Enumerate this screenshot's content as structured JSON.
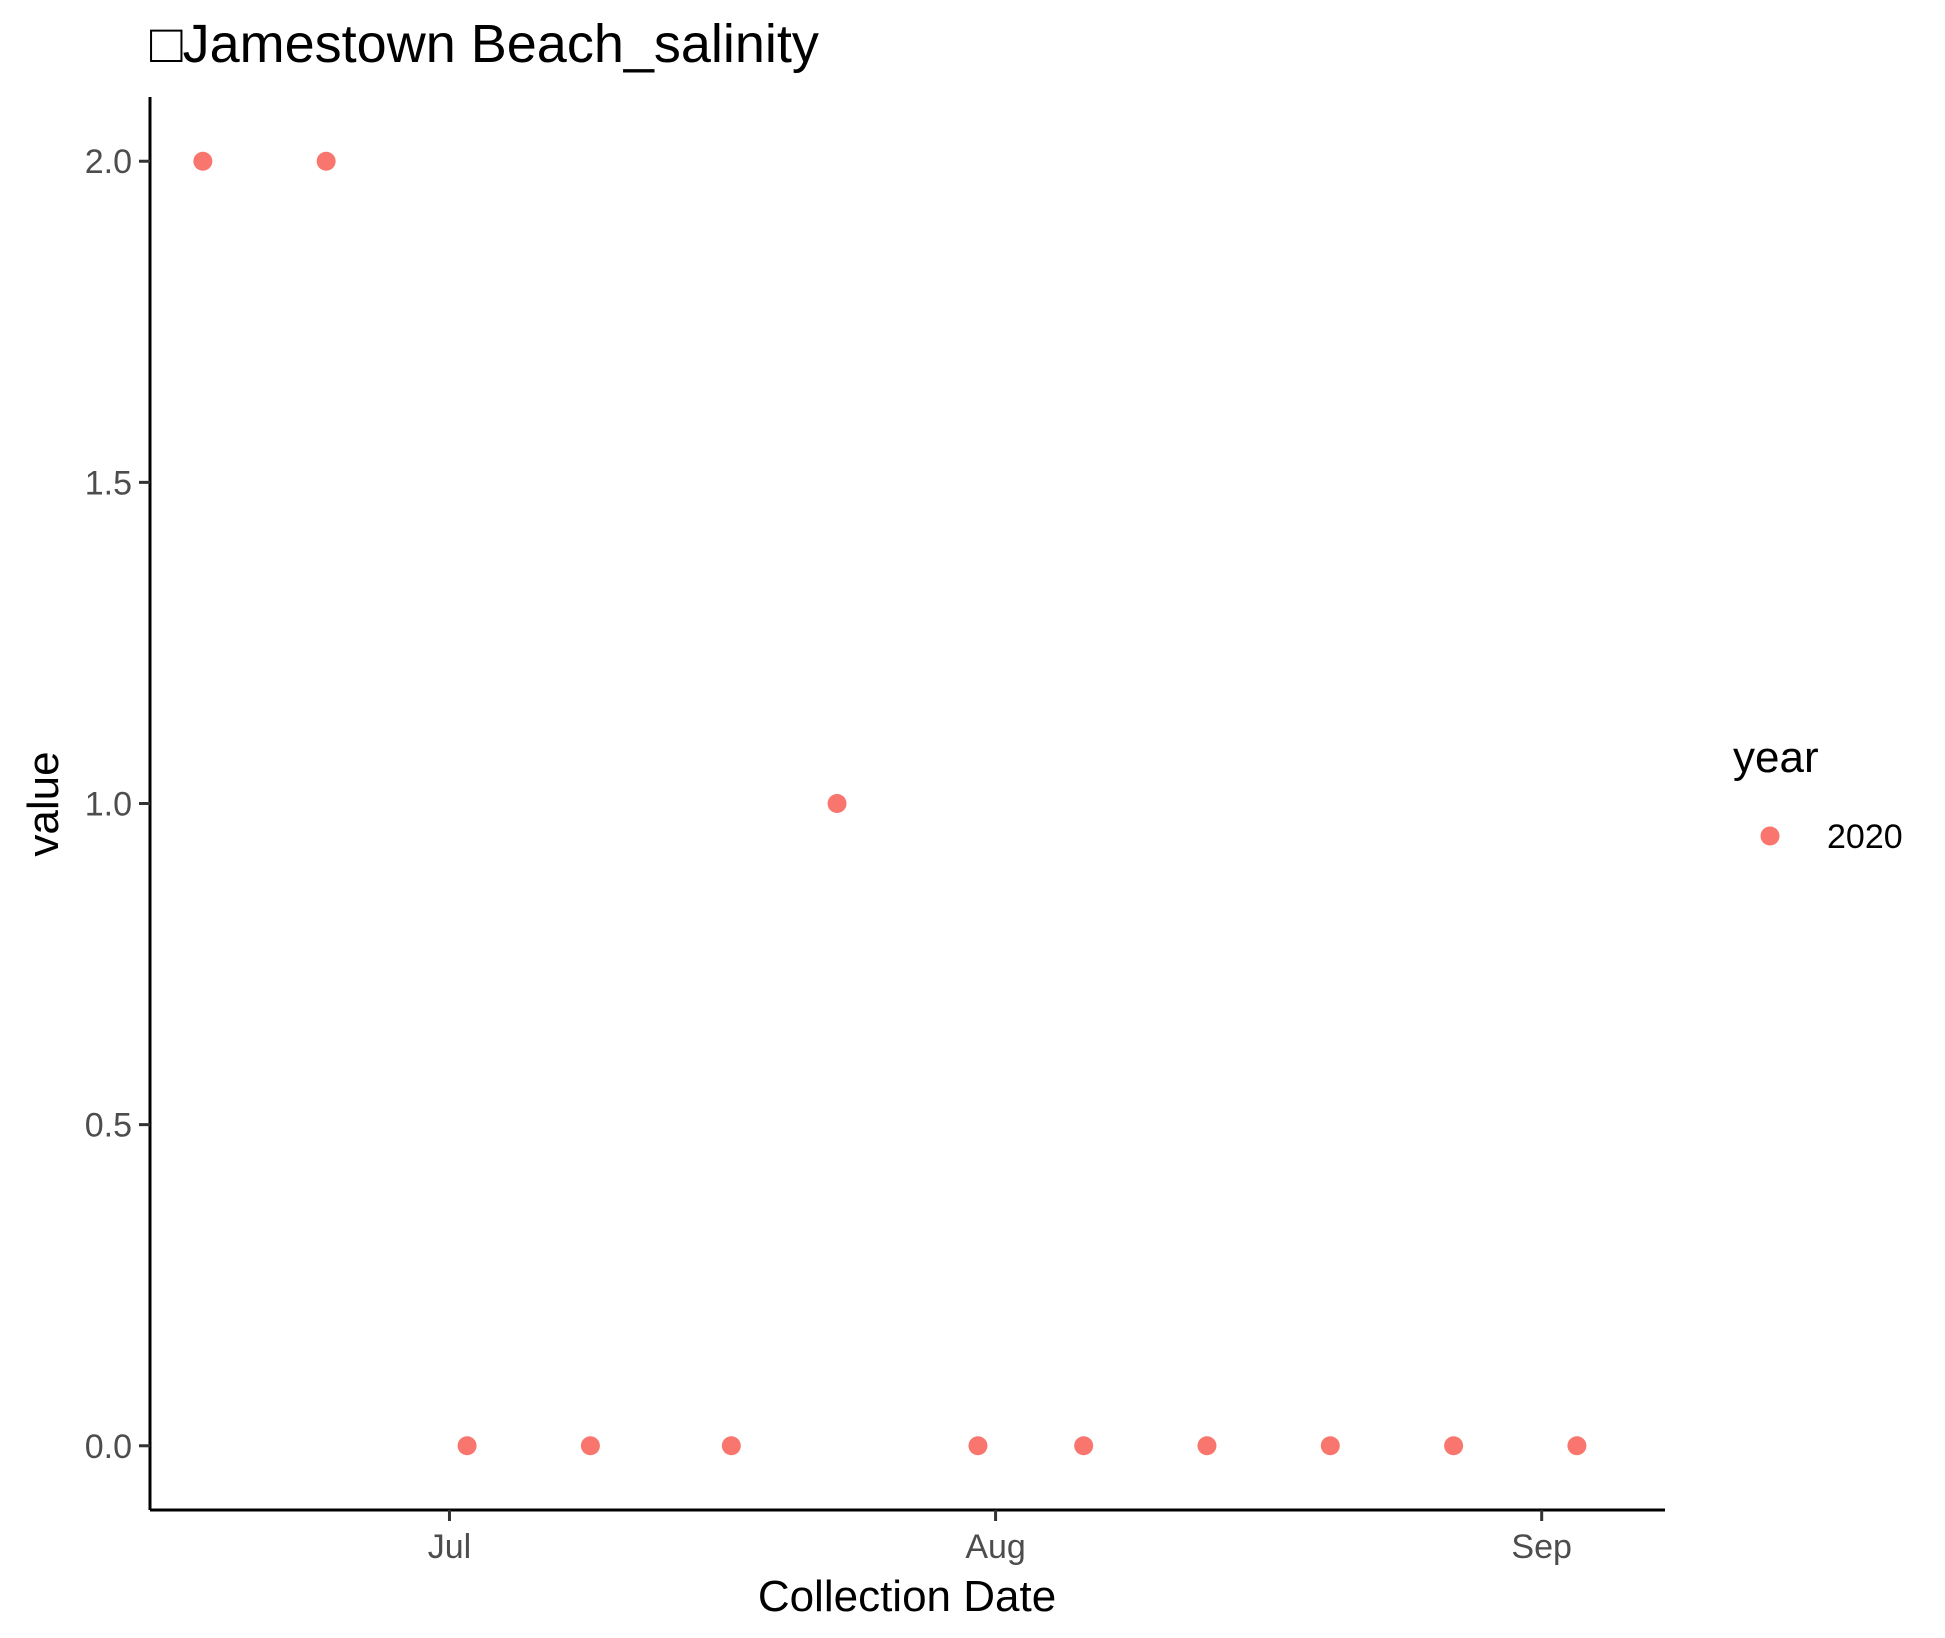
{
  "chart_data": {
    "type": "scatter",
    "title": "□Jamestown Beach_salinity",
    "xlabel": "Collection Date",
    "ylabel": "value",
    "x_type": "date",
    "x_range": [
      "2020-06-14",
      "2020-09-08"
    ],
    "x_ticks": [
      {
        "date": "2020-07-01",
        "label": "Jul"
      },
      {
        "date": "2020-08-01",
        "label": "Aug"
      },
      {
        "date": "2020-09-01",
        "label": "Sep"
      }
    ],
    "ylim": [
      -0.1,
      2.1
    ],
    "y_ticks": [
      {
        "value": 0.0,
        "label": "0.0"
      },
      {
        "value": 0.5,
        "label": "0.5"
      },
      {
        "value": 1.0,
        "label": "1.0"
      },
      {
        "value": 1.5,
        "label": "1.5"
      },
      {
        "value": 2.0,
        "label": "2.0"
      }
    ],
    "grid": false,
    "legend": {
      "title": "year",
      "position": "right",
      "entries": [
        {
          "label": "2020",
          "color": "#F8766D"
        }
      ]
    },
    "series": [
      {
        "name": "2020",
        "color": "#F8766D",
        "points": [
          {
            "x": "2020-06-17",
            "y": 2
          },
          {
            "x": "2020-06-24",
            "y": 2
          },
          {
            "x": "2020-07-02",
            "y": 0
          },
          {
            "x": "2020-07-09",
            "y": 0
          },
          {
            "x": "2020-07-17",
            "y": 0
          },
          {
            "x": "2020-07-23",
            "y": 1
          },
          {
            "x": "2020-07-31",
            "y": 0
          },
          {
            "x": "2020-08-06",
            "y": 0
          },
          {
            "x": "2020-08-13",
            "y": 0
          },
          {
            "x": "2020-08-20",
            "y": 0
          },
          {
            "x": "2020-08-27",
            "y": 0
          },
          {
            "x": "2020-09-03",
            "y": 0
          }
        ]
      }
    ]
  }
}
